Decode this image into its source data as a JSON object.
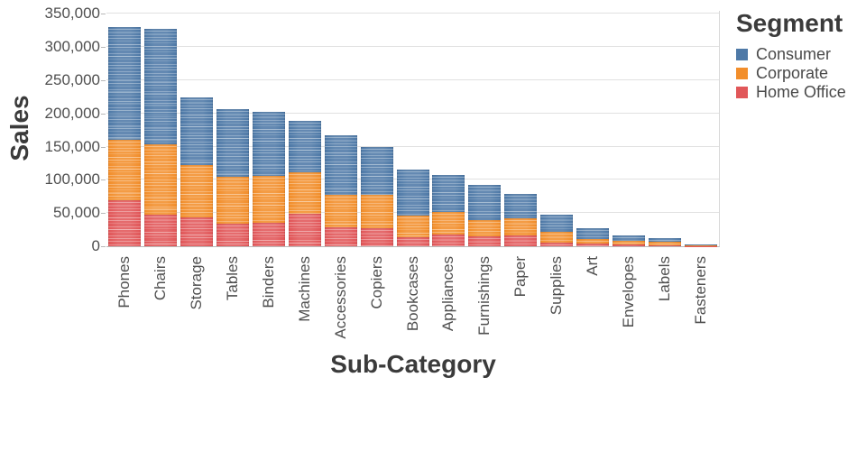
{
  "chart_data": {
    "type": "bar",
    "stacked": true,
    "title": "",
    "xlabel": "Sub-Category",
    "ylabel": "Sales",
    "ylim": [
      0,
      350000
    ],
    "grid": "horizontal",
    "legend_position": "right",
    "legend_title": "Segment",
    "y_ticks": [
      {
        "value": 0,
        "label": "0"
      },
      {
        "value": 50000,
        "label": "50,000"
      },
      {
        "value": 100000,
        "label": "100,000"
      },
      {
        "value": 150000,
        "label": "150,000"
      },
      {
        "value": 200000,
        "label": "200,000"
      },
      {
        "value": 250000,
        "label": "250,000"
      },
      {
        "value": 300000,
        "label": "300,000"
      },
      {
        "value": 350000,
        "label": "350,000"
      }
    ],
    "categories": [
      "Phones",
      "Chairs",
      "Storage",
      "Tables",
      "Binders",
      "Machines",
      "Accessories",
      "Copiers",
      "Bookcases",
      "Appliances",
      "Furnishings",
      "Paper",
      "Supplies",
      "Art",
      "Envelopes",
      "Labels",
      "Fasteners"
    ],
    "stack_order_top_to_bottom": [
      "Consumer",
      "Corporate",
      "Home Office"
    ],
    "series": [
      {
        "name": "Consumer",
        "color": "#4e79a7",
        "values": [
          170000,
          174000,
          102000,
          103000,
          97000,
          78000,
          89000,
          72000,
          69000,
          55000,
          52000,
          37000,
          25000,
          16500,
          9000,
          6200,
          1500
        ]
      },
      {
        "name": "Corporate",
        "color": "#f28e2b",
        "values": [
          91000,
          107000,
          78000,
          70000,
          70000,
          62000,
          49000,
          51000,
          33000,
          34000,
          25000,
          26000,
          17000,
          7000,
          5000,
          4500,
          1000
        ]
      },
      {
        "name": "Home Office",
        "color": "#e15759",
        "values": [
          69000,
          47000,
          44000,
          34000,
          36000,
          49000,
          29000,
          27000,
          13000,
          18000,
          15000,
          16000,
          5000,
          3500,
          2700,
          1800,
          500
        ]
      }
    ]
  }
}
